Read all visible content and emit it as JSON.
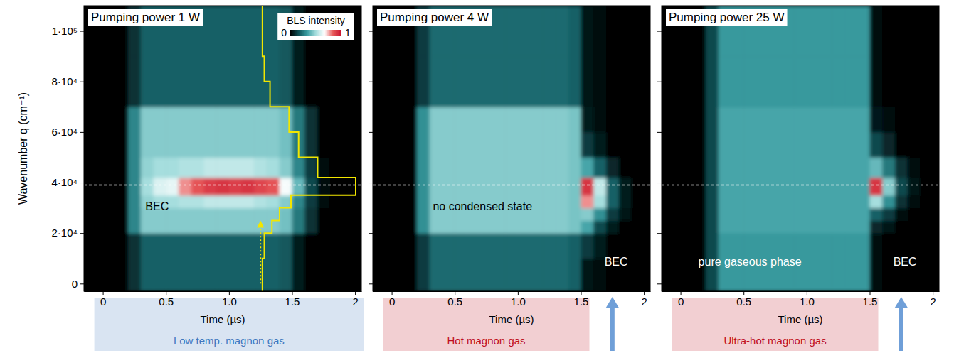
{
  "chart_data": [
    {
      "type": "heatmap",
      "title": "Pumping power 1 W",
      "xlabel": "Time (µs)",
      "ylabel": "Wavenumber q (cm⁻¹)",
      "xlim": [
        -0.15,
        2.05
      ],
      "ylim": [
        -3000,
        110000
      ],
      "xticks": [
        0,
        0.5,
        {
          "value": 1,
          "label": "1.0"
        },
        1.5,
        2
      ],
      "yticks": [
        0,
        {
          "value": 20000,
          "label": "2·10⁴"
        },
        {
          "value": 40000,
          "label": "4·10⁴"
        },
        {
          "value": 60000,
          "label": "6·10⁴"
        },
        {
          "value": 80000,
          "label": "8·10⁴"
        },
        {
          "value": 100000,
          "label": "1·10⁵"
        }
      ],
      "x_bins": [
        0,
        0.1,
        0.2,
        0.3,
        0.4,
        0.5,
        0.6,
        0.7,
        0.8,
        0.9,
        1,
        1.1,
        1.2,
        1.3,
        1.4,
        1.5,
        1.6,
        1.7,
        1.8,
        1.9,
        2
      ],
      "y_bins": [
        -3000,
        10000,
        20000,
        25000,
        30000,
        35000,
        42000,
        50000,
        60000,
        70000,
        80000,
        90000,
        100000,
        110000
      ],
      "cells": [
        [
          0,
          0,
          0.1,
          0.2,
          0.2,
          0.2,
          0.2,
          0.2,
          0.2,
          0.2,
          0.2,
          0.2,
          0.2,
          0.2,
          0.18,
          0.06,
          0,
          0,
          0,
          0
        ],
        [
          0,
          0,
          0.1,
          0.2,
          0.2,
          0.2,
          0.2,
          0.2,
          0.2,
          0.2,
          0.2,
          0.2,
          0.2,
          0.2,
          0.18,
          0.06,
          0,
          0,
          0,
          0
        ],
        [
          0,
          0,
          0.28,
          0.45,
          0.45,
          0.45,
          0.45,
          0.45,
          0.45,
          0.45,
          0.45,
          0.45,
          0.45,
          0.45,
          0.42,
          0.25,
          0.1,
          0,
          0,
          0
        ],
        [
          0,
          0,
          0.28,
          0.45,
          0.45,
          0.45,
          0.45,
          0.45,
          0.45,
          0.45,
          0.45,
          0.45,
          0.45,
          0.45,
          0.42,
          0.25,
          0.1,
          0,
          0,
          0
        ],
        [
          0,
          0,
          0.28,
          0.47,
          0.5,
          0.5,
          0.52,
          0.52,
          0.55,
          0.55,
          0.55,
          0.55,
          0.52,
          0.5,
          0.45,
          0.28,
          0.12,
          0.02,
          0,
          0
        ],
        [
          0,
          0,
          0.28,
          0.5,
          0.6,
          0.62,
          0.78,
          0.85,
          0.9,
          0.92,
          0.9,
          0.92,
          0.88,
          0.85,
          0.65,
          0.4,
          0.15,
          0.03,
          0,
          0
        ],
        [
          0,
          0,
          0.28,
          0.47,
          0.5,
          0.5,
          0.52,
          0.52,
          0.55,
          0.55,
          0.55,
          0.55,
          0.52,
          0.5,
          0.45,
          0.28,
          0.12,
          0.02,
          0,
          0
        ],
        [
          0,
          0,
          0.28,
          0.45,
          0.45,
          0.45,
          0.45,
          0.45,
          0.45,
          0.45,
          0.45,
          0.45,
          0.45,
          0.45,
          0.42,
          0.25,
          0.1,
          0,
          0,
          0
        ],
        [
          0,
          0,
          0.28,
          0.45,
          0.45,
          0.45,
          0.45,
          0.45,
          0.45,
          0.45,
          0.45,
          0.45,
          0.45,
          0.45,
          0.42,
          0.25,
          0.1,
          0,
          0,
          0
        ],
        [
          0,
          0,
          0.1,
          0.2,
          0.2,
          0.2,
          0.2,
          0.2,
          0.2,
          0.2,
          0.2,
          0.2,
          0.2,
          0.2,
          0.18,
          0.06,
          0,
          0,
          0,
          0
        ],
        [
          0,
          0,
          0.1,
          0.2,
          0.2,
          0.2,
          0.2,
          0.2,
          0.2,
          0.2,
          0.2,
          0.2,
          0.2,
          0.2,
          0.18,
          0.06,
          0,
          0,
          0,
          0
        ],
        [
          0,
          0,
          0.1,
          0.2,
          0.2,
          0.2,
          0.2,
          0.2,
          0.2,
          0.2,
          0.2,
          0.2,
          0.2,
          0.2,
          0.18,
          0.06,
          0,
          0,
          0,
          0
        ],
        [
          0,
          0,
          0.1,
          0.2,
          0.2,
          0.2,
          0.2,
          0.2,
          0.2,
          0.2,
          0.2,
          0.2,
          0.2,
          0.2,
          0.18,
          0.06,
          0,
          0,
          0,
          0
        ]
      ],
      "colorbar": {
        "label": "BLS intensity",
        "range": [
          0,
          1
        ],
        "ticks": [
          0,
          1
        ],
        "colors": [
          "#000000",
          "#0e5257",
          "#3c9fa3",
          "#a6dede",
          "#ffffff",
          "#e85a5a",
          "#c8102e"
        ]
      },
      "reference_line": 39000,
      "profile": {
        "time": 1.25,
        "q_range": [
          0,
          25000
        ],
        "values": [
          0.02,
          0.04,
          0.12,
          0.2,
          0.32,
          1,
          0.6,
          0.4,
          0.3,
          0.1,
          0.04,
          0.02,
          0.02
        ]
      },
      "annotations": [
        {
          "text": "BEC",
          "x": 0.43,
          "y": 29000,
          "color": "#000000"
        }
      ],
      "phase_label": {
        "text": "Low temp. magnon gas",
        "span": [
          0,
          2
        ],
        "color": "#3f78c0"
      }
    },
    {
      "type": "heatmap",
      "title": "Pumping power 4 W",
      "xlabel": "Time (µs)",
      "tick_labels": "x",
      "xlim": [
        -0.15,
        2.05
      ],
      "ylim": [
        -3000,
        110000
      ],
      "xticks": [
        0,
        0.5,
        {
          "value": 1,
          "label": "1.0"
        },
        1.5,
        2
      ],
      "yticks": [
        0,
        20000,
        40000,
        60000,
        80000,
        100000
      ],
      "x_bins": [
        0,
        0.1,
        0.2,
        0.3,
        0.4,
        0.5,
        0.6,
        0.7,
        0.8,
        0.9,
        1,
        1.1,
        1.2,
        1.3,
        1.4,
        1.5,
        1.6,
        1.7,
        1.8,
        1.9,
        2
      ],
      "y_bins": [
        -3000,
        10000,
        20000,
        25000,
        30000,
        35000,
        42000,
        50000,
        60000,
        70000,
        80000,
        90000,
        100000,
        110000
      ],
      "cells": [
        [
          0,
          0,
          0.12,
          0.22,
          0.22,
          0.22,
          0.22,
          0.22,
          0.22,
          0.22,
          0.22,
          0.22,
          0.22,
          0.22,
          0.2,
          0.04,
          0.02,
          0,
          0,
          0
        ],
        [
          0,
          0,
          0.12,
          0.22,
          0.22,
          0.22,
          0.22,
          0.22,
          0.22,
          0.22,
          0.22,
          0.22,
          0.22,
          0.22,
          0.2,
          0.12,
          0.06,
          0,
          0,
          0
        ],
        [
          0,
          0,
          0.3,
          0.45,
          0.45,
          0.45,
          0.45,
          0.45,
          0.45,
          0.45,
          0.45,
          0.45,
          0.45,
          0.45,
          0.43,
          0.35,
          0.15,
          0.06,
          0,
          0
        ],
        [
          0,
          0,
          0.3,
          0.45,
          0.45,
          0.45,
          0.45,
          0.45,
          0.45,
          0.45,
          0.45,
          0.45,
          0.45,
          0.45,
          0.43,
          0.45,
          0.3,
          0.12,
          0.04,
          0
        ],
        [
          0,
          0,
          0.3,
          0.45,
          0.45,
          0.45,
          0.45,
          0.45,
          0.45,
          0.45,
          0.45,
          0.45,
          0.45,
          0.45,
          0.43,
          0.78,
          0.5,
          0.2,
          0.06,
          0
        ],
        [
          0,
          0,
          0.3,
          0.45,
          0.45,
          0.45,
          0.45,
          0.45,
          0.45,
          0.45,
          0.45,
          0.45,
          0.45,
          0.45,
          0.43,
          0.92,
          0.55,
          0.2,
          0.06,
          0
        ],
        [
          0,
          0,
          0.3,
          0.45,
          0.45,
          0.45,
          0.45,
          0.45,
          0.45,
          0.45,
          0.45,
          0.45,
          0.45,
          0.45,
          0.43,
          0.35,
          0.2,
          0.08,
          0,
          0
        ],
        [
          0,
          0,
          0.3,
          0.45,
          0.45,
          0.45,
          0.45,
          0.45,
          0.45,
          0.45,
          0.45,
          0.45,
          0.45,
          0.45,
          0.43,
          0.12,
          0.06,
          0,
          0,
          0
        ],
        [
          0,
          0,
          0.3,
          0.45,
          0.45,
          0.45,
          0.45,
          0.45,
          0.45,
          0.45,
          0.45,
          0.45,
          0.45,
          0.45,
          0.43,
          0.06,
          0.02,
          0,
          0,
          0
        ],
        [
          0,
          0,
          0.12,
          0.22,
          0.22,
          0.22,
          0.22,
          0.22,
          0.22,
          0.22,
          0.22,
          0.22,
          0.22,
          0.22,
          0.2,
          0.04,
          0.02,
          0,
          0,
          0
        ],
        [
          0,
          0,
          0.12,
          0.22,
          0.22,
          0.22,
          0.22,
          0.22,
          0.22,
          0.22,
          0.22,
          0.22,
          0.22,
          0.22,
          0.2,
          0.04,
          0.02,
          0,
          0,
          0
        ],
        [
          0,
          0,
          0.12,
          0.22,
          0.22,
          0.22,
          0.22,
          0.22,
          0.22,
          0.22,
          0.22,
          0.22,
          0.22,
          0.22,
          0.2,
          0.04,
          0.02,
          0,
          0,
          0
        ],
        [
          0,
          0,
          0.12,
          0.22,
          0.22,
          0.22,
          0.22,
          0.22,
          0.22,
          0.22,
          0.22,
          0.22,
          0.22,
          0.22,
          0.2,
          0.04,
          0.02,
          0,
          0,
          0
        ]
      ],
      "reference_line": 39000,
      "annotations": [
        {
          "text": "no condensed state",
          "x": 0.72,
          "y": 29000,
          "color": "#000000"
        },
        {
          "text": "BEC",
          "x": 1.78,
          "y": 7000,
          "color": "#ffffff"
        }
      ],
      "phase_label": {
        "text": "Hot magnon gas",
        "span": [
          0,
          1.5
        ],
        "color": "#c0101e"
      },
      "arrow": 1.75
    },
    {
      "type": "heatmap",
      "title": "Pumping power 25 W",
      "xlabel": "Time (µs)",
      "tick_labels": "x",
      "xlim": [
        -0.15,
        2.05
      ],
      "ylim": [
        -3000,
        110000
      ],
      "xticks": [
        0,
        0.5,
        {
          "value": 1,
          "label": "1.0"
        },
        1.5,
        2
      ],
      "yticks": [
        0,
        20000,
        40000,
        60000,
        80000,
        100000
      ],
      "x_bins": [
        0,
        0.1,
        0.2,
        0.3,
        0.4,
        0.5,
        0.6,
        0.7,
        0.8,
        0.9,
        1,
        1.1,
        1.2,
        1.3,
        1.4,
        1.5,
        1.6,
        1.7,
        1.8,
        1.9,
        2
      ],
      "y_bins": [
        -3000,
        10000,
        20000,
        25000,
        30000,
        35000,
        42000,
        50000,
        60000,
        70000,
        80000,
        90000,
        100000,
        110000
      ],
      "cells": [
        [
          0,
          0,
          0.15,
          0.32,
          0.32,
          0.32,
          0.32,
          0.32,
          0.32,
          0.32,
          0.32,
          0.32,
          0.32,
          0.32,
          0.32,
          0.03,
          0.01,
          0,
          0,
          0
        ],
        [
          0,
          0,
          0.15,
          0.32,
          0.32,
          0.32,
          0.32,
          0.32,
          0.32,
          0.32,
          0.32,
          0.32,
          0.32,
          0.32,
          0.32,
          0.03,
          0.01,
          0,
          0,
          0
        ],
        [
          0,
          0,
          0.15,
          0.35,
          0.35,
          0.35,
          0.35,
          0.35,
          0.35,
          0.35,
          0.35,
          0.35,
          0.35,
          0.35,
          0.35,
          0.08,
          0.04,
          0,
          0,
          0
        ],
        [
          0,
          0,
          0.15,
          0.35,
          0.35,
          0.35,
          0.35,
          0.35,
          0.35,
          0.35,
          0.35,
          0.35,
          0.35,
          0.35,
          0.35,
          0.2,
          0.12,
          0.03,
          0,
          0
        ],
        [
          0,
          0,
          0.15,
          0.35,
          0.35,
          0.35,
          0.35,
          0.35,
          0.35,
          0.35,
          0.35,
          0.35,
          0.35,
          0.35,
          0.35,
          0.5,
          0.3,
          0.1,
          0.02,
          0
        ],
        [
          0,
          0,
          0.15,
          0.35,
          0.35,
          0.35,
          0.35,
          0.35,
          0.35,
          0.35,
          0.35,
          0.35,
          0.35,
          0.35,
          0.35,
          0.92,
          0.45,
          0.15,
          0.04,
          0
        ],
        [
          0,
          0,
          0.15,
          0.35,
          0.35,
          0.35,
          0.35,
          0.35,
          0.35,
          0.35,
          0.35,
          0.35,
          0.35,
          0.35,
          0.35,
          0.4,
          0.25,
          0.1,
          0.02,
          0
        ],
        [
          0,
          0,
          0.15,
          0.35,
          0.35,
          0.35,
          0.35,
          0.35,
          0.35,
          0.35,
          0.35,
          0.35,
          0.35,
          0.35,
          0.35,
          0.15,
          0.08,
          0,
          0,
          0
        ],
        [
          0,
          0,
          0.15,
          0.35,
          0.35,
          0.35,
          0.35,
          0.35,
          0.35,
          0.35,
          0.35,
          0.35,
          0.35,
          0.35,
          0.35,
          0.05,
          0.02,
          0,
          0,
          0
        ],
        [
          0,
          0,
          0.15,
          0.32,
          0.32,
          0.32,
          0.32,
          0.32,
          0.32,
          0.32,
          0.32,
          0.32,
          0.32,
          0.32,
          0.32,
          0.03,
          0.01,
          0,
          0,
          0
        ],
        [
          0,
          0,
          0.15,
          0.32,
          0.32,
          0.32,
          0.32,
          0.32,
          0.32,
          0.32,
          0.32,
          0.32,
          0.32,
          0.32,
          0.32,
          0.03,
          0.01,
          0,
          0,
          0
        ],
        [
          0,
          0,
          0.15,
          0.32,
          0.32,
          0.32,
          0.32,
          0.32,
          0.32,
          0.32,
          0.32,
          0.32,
          0.32,
          0.32,
          0.32,
          0.03,
          0.01,
          0,
          0,
          0
        ],
        [
          0,
          0,
          0.15,
          0.32,
          0.32,
          0.32,
          0.32,
          0.32,
          0.32,
          0.32,
          0.32,
          0.32,
          0.32,
          0.32,
          0.32,
          0.03,
          0.01,
          0,
          0,
          0
        ]
      ],
      "reference_line": 39000,
      "annotations": [
        {
          "text": "pure gaseous phase",
          "x": 0.55,
          "y": 7000,
          "color": "#ffffff"
        },
        {
          "text": "BEC",
          "x": 1.78,
          "y": 7000,
          "color": "#ffffff"
        }
      ],
      "phase_label": {
        "text": "Ultra-hot magnon gas",
        "span": [
          0,
          1.5
        ],
        "color": "#c0101e"
      },
      "arrow": 1.75
    }
  ]
}
